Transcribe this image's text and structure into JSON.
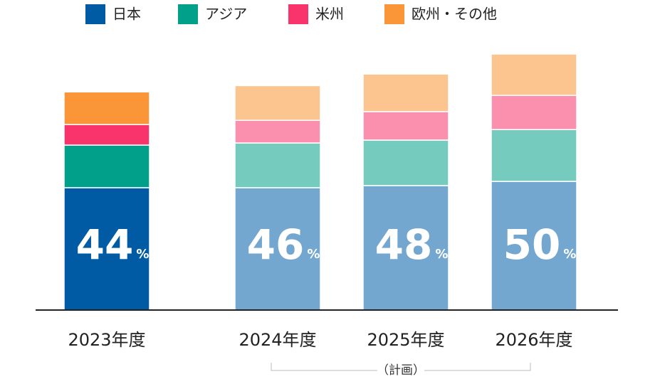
{
  "chart_data": {
    "type": "stacked_bar",
    "categories": [
      "2023年度",
      "2024年度",
      "2025年度",
      "2026年度"
    ],
    "planned": [
      false,
      true,
      true,
      true
    ],
    "series": [
      {
        "name": "日本",
        "color": "#005ba4",
        "plan_color": "#74a7cf",
        "values": [
          46.5,
          46.5,
          47.3,
          48.9
        ]
      },
      {
        "name": "アジア",
        "color": "#00a08a",
        "plan_color": "#74cbbe",
        "values": [
          16.2,
          17,
          17.3,
          19.7
        ]
      },
      {
        "name": "米州",
        "color": "#f9336b",
        "plan_color": "#fb8fae",
        "values": [
          7.8,
          8.6,
          10.8,
          13
        ]
      },
      {
        "name": "欧州・その他",
        "color": "#fb9638",
        "plan_color": "#fcc58f",
        "values": [
          12.4,
          13.2,
          14.3,
          15.7
        ]
      }
    ],
    "shares": [
      44,
      46,
      48,
      50
    ],
    "share_unit": "%",
    "plan_label": "（計画）",
    "ylim": [
      0,
      100
    ]
  }
}
